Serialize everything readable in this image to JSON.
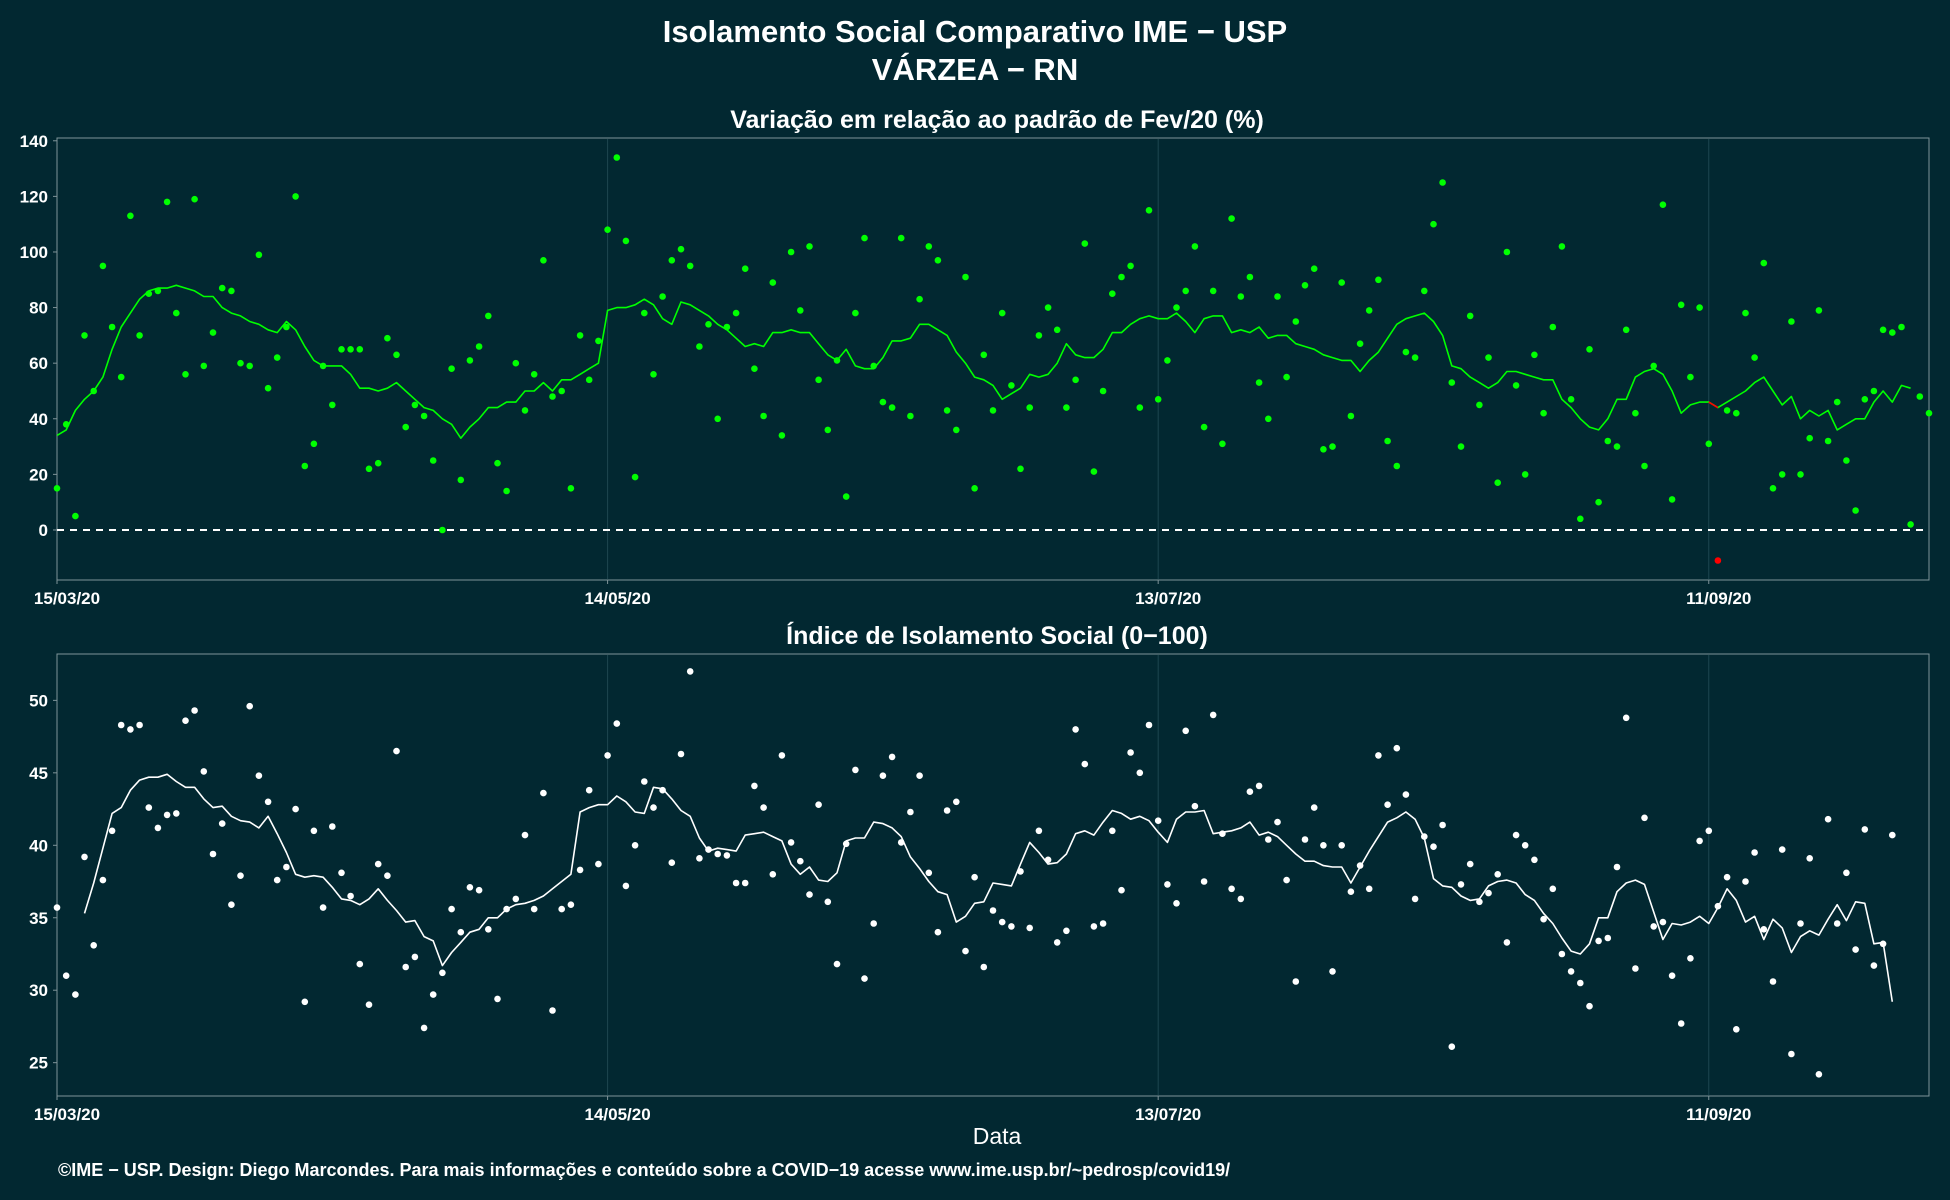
{
  "title_line1": "Isolamento Social Comparativo IME − USP",
  "title_line2": "VÁRZEA − RN",
  "xlabel": "Data",
  "caption": "©IME − USP. Design: Diego Marcondes. Para mais informações e conteúdo sobre a COVID−19 acesse www.ime.usp.br/~pedrosp/covid19/",
  "colors": {
    "background": "#022831",
    "panel_border": "#7f9499",
    "grid": "#1e4650",
    "top_series": "#00ff00",
    "top_highlight": "#ff0000",
    "bottom_series": "#ffffff"
  },
  "chart_data": [
    {
      "type": "scatter",
      "title": "Variação em relação ao padrão de Fev/20 (%)",
      "x_start": "15/03/20",
      "x_tick_labels": [
        "15/03/20",
        "14/05/20",
        "13/07/20",
        "11/09/20"
      ],
      "x_tick_offsets_days": [
        0,
        60,
        120,
        180
      ],
      "x_range_days": [
        0,
        204
      ],
      "ylim": [
        -18,
        141
      ],
      "y_ticks": [
        0,
        20,
        40,
        60,
        80,
        100,
        120,
        140
      ],
      "reference_line_y": 0,
      "series": [
        {
          "role": "points",
          "color": "#00ff00",
          "values": [
            15,
            38,
            5,
            70,
            50,
            95,
            73,
            55,
            113,
            70,
            85,
            86,
            118,
            78,
            56,
            119,
            59,
            71,
            87,
            86,
            60,
            59,
            99,
            51,
            62,
            73,
            120,
            23,
            31,
            59,
            45,
            65,
            65,
            65,
            22,
            24,
            69,
            63,
            37,
            45,
            41,
            25,
            0,
            58,
            18,
            61,
            66,
            77,
            24,
            14,
            60,
            43,
            56,
            97,
            48,
            50,
            15,
            70,
            54,
            68,
            108,
            134,
            104,
            19,
            78,
            56,
            84,
            97,
            101,
            95,
            66,
            74,
            40,
            73,
            78,
            94,
            58,
            41,
            89,
            34,
            100,
            79,
            102,
            54,
            36,
            61,
            12,
            78,
            105,
            59,
            46,
            44,
            105,
            41,
            83,
            102,
            97,
            43,
            36,
            91,
            15,
            63,
            43,
            78,
            52,
            22,
            44,
            70,
            80,
            72,
            44,
            54,
            103,
            21,
            50,
            85,
            91,
            95,
            44,
            115,
            47,
            61,
            80,
            86,
            102,
            37,
            86,
            31,
            112,
            84,
            91,
            53,
            40,
            84,
            55,
            75,
            88,
            94,
            29,
            30,
            89,
            41,
            67,
            79,
            90,
            32,
            23,
            64,
            62,
            86,
            110,
            125,
            53,
            30,
            77,
            45,
            62,
            17,
            100,
            52,
            20,
            63,
            42,
            73,
            102,
            47,
            4,
            65,
            10,
            32,
            30,
            72,
            42,
            23,
            59,
            117,
            11,
            81,
            55,
            80,
            31
          ],
          "highlight_point": {
            "day": 181,
            "value": -11,
            "color": "#ff0000"
          },
          "tail_values": [
            43,
            42,
            78,
            62,
            96,
            15,
            20,
            75,
            20,
            33,
            79,
            32,
            46,
            25,
            7,
            47,
            50,
            72,
            71,
            73,
            2,
            48,
            42
          ]
        },
        {
          "role": "moving_average",
          "color": "#00ff00",
          "values": [
            34,
            36,
            43,
            47,
            50,
            55,
            65,
            73,
            78,
            83,
            86,
            87,
            87,
            88,
            87,
            86,
            84,
            84,
            80,
            78,
            77,
            75,
            74,
            72,
            71,
            75,
            72,
            66,
            61,
            59,
            59,
            59,
            56,
            51,
            51,
            50,
            51,
            53,
            50,
            47,
            44,
            43,
            40,
            38,
            33,
            37,
            40,
            44,
            44,
            46,
            46,
            50,
            50,
            53,
            50,
            54,
            54,
            56,
            58,
            60,
            79,
            80,
            80,
            81,
            83,
            81,
            76,
            74,
            82,
            81,
            79,
            77,
            74,
            72,
            69,
            66,
            67,
            66,
            71,
            71,
            72,
            71,
            71,
            67,
            63,
            61,
            65,
            59,
            58,
            58,
            62,
            68,
            68,
            69,
            74,
            74,
            72,
            70,
            64,
            60,
            55,
            54,
            52,
            47,
            49,
            51,
            56,
            55,
            56,
            60,
            67,
            63,
            62,
            62,
            65,
            71,
            71,
            74,
            76,
            77,
            76,
            76,
            78,
            75,
            71,
            76,
            77,
            77,
            71,
            72,
            71,
            73,
            69,
            70,
            70,
            67,
            66,
            65,
            63,
            62,
            61,
            61,
            57,
            61,
            64,
            69,
            74,
            76,
            77,
            78,
            75,
            70,
            59,
            58,
            55,
            53,
            51,
            53,
            57,
            57,
            56,
            55,
            54,
            54,
            47,
            44,
            40,
            37,
            36,
            40,
            47,
            47,
            55,
            57,
            58,
            56,
            50,
            42,
            45,
            46,
            46,
            44,
            46,
            48,
            50,
            53,
            55,
            50,
            45,
            48,
            40,
            43,
            41,
            43,
            36,
            38,
            40,
            40,
            46,
            50,
            46,
            52,
            51
          ]
        }
      ]
    },
    {
      "type": "scatter",
      "title": "Índice de Isolamento Social (0−100)",
      "x_start": "15/03/20",
      "x_tick_labels": [
        "15/03/20",
        "14/05/20",
        "13/07/20",
        "11/09/20"
      ],
      "x_tick_offsets_days": [
        0,
        60,
        120,
        180
      ],
      "x_range_days": [
        0,
        204
      ],
      "ylim": [
        22.7,
        53.2
      ],
      "y_ticks": [
        25,
        30,
        35,
        40,
        45,
        50
      ],
      "series": [
        {
          "role": "points",
          "color": "#ffffff",
          "values": [
            35.7,
            31.0,
            29.7,
            39.2,
            33.1,
            37.6,
            41.0,
            48.3,
            48.0,
            48.3,
            42.6,
            41.2,
            42.1,
            42.2,
            48.6,
            49.3,
            45.1,
            39.4,
            41.5,
            35.9,
            37.9,
            49.6,
            44.8,
            43.0,
            37.6,
            38.5,
            42.5,
            29.2,
            41.0,
            35.7,
            41.3,
            38.1,
            36.5,
            31.8,
            29.0,
            38.7,
            37.9,
            46.5,
            31.6,
            32.3,
            27.4,
            29.7,
            31.2,
            35.6,
            34.0,
            37.1,
            36.9,
            34.2,
            29.4,
            35.6,
            36.3,
            40.7,
            35.6,
            43.6,
            28.6,
            35.6,
            35.9,
            38.3,
            43.8,
            38.7,
            46.2,
            48.4,
            37.2,
            40.0,
            44.4,
            42.6,
            43.8,
            38.8,
            46.3,
            52.0,
            39.1,
            39.7,
            39.4,
            39.3,
            37.4,
            37.4,
            44.1,
            42.6,
            38.0,
            46.2,
            40.2,
            38.9,
            36.6,
            42.8,
            36.1,
            31.8,
            40.1,
            45.2,
            30.8,
            34.6,
            44.8,
            46.1,
            40.2,
            42.3,
            44.8,
            38.1,
            34.0,
            42.4,
            43.0,
            32.7,
            37.8,
            31.6,
            35.5,
            34.7,
            34.4,
            38.2,
            34.3,
            41.0,
            39.0,
            33.3,
            34.1,
            48.0,
            45.6,
            34.4,
            34.6,
            41.0,
            36.9,
            46.4,
            45.0,
            48.3,
            41.7,
            37.3,
            36.0,
            47.9,
            42.7,
            37.5,
            49.0,
            40.8,
            37.0,
            36.3,
            43.7,
            44.1,
            40.4,
            41.6,
            37.6,
            30.6,
            40.4,
            42.6,
            40.0,
            31.3,
            40.0,
            36.8,
            38.6,
            37.0,
            46.2,
            42.8,
            46.7,
            43.5,
            36.3,
            40.6,
            39.9,
            41.4,
            26.1,
            37.3,
            38.7,
            36.1,
            36.7,
            38.0,
            33.3,
            40.7,
            40.0,
            39.0,
            34.9,
            37.0,
            32.5,
            31.3,
            30.5,
            28.9,
            33.4,
            33.6,
            38.5,
            48.8,
            31.5,
            41.9,
            34.4,
            34.7,
            31.0,
            27.7,
            32.2,
            40.3,
            41.0,
            35.8,
            37.8,
            27.3,
            37.5,
            39.5,
            34.2,
            30.6,
            39.7,
            25.6,
            34.6,
            39.1,
            24.2,
            41.8,
            34.6,
            38.1,
            32.8,
            41.1,
            31.7,
            33.2,
            40.7
          ]
        },
        {
          "role": "moving_average",
          "color": "#ffffff",
          "values": [
            35.3,
            37.4,
            39.8,
            42.2,
            42.6,
            43.8,
            44.5,
            44.7,
            44.7,
            44.9,
            44.4,
            44.0,
            44.0,
            43.2,
            42.6,
            42.7,
            42.0,
            41.7,
            41.6,
            41.2,
            42.0,
            40.8,
            39.5,
            38.0,
            37.8,
            37.9,
            37.8,
            37.1,
            36.3,
            36.2,
            35.9,
            36.3,
            37.0,
            36.2,
            35.5,
            34.7,
            34.8,
            33.7,
            33.4,
            31.7,
            32.6,
            33.3,
            34.0,
            34.2,
            35.0,
            35.0,
            35.6,
            35.9,
            36.0,
            36.2,
            36.5,
            37.0,
            37.5,
            38.0,
            42.3,
            42.6,
            42.8,
            42.8,
            43.4,
            43.0,
            42.3,
            42.2,
            44.0,
            43.9,
            43.2,
            42.4,
            42.0,
            40.5,
            39.6,
            39.8,
            39.7,
            39.6,
            40.7,
            40.8,
            40.9,
            40.6,
            40.3,
            38.7,
            38.0,
            38.5,
            37.6,
            37.5,
            38.1,
            40.3,
            40.5,
            40.5,
            41.6,
            41.5,
            41.2,
            40.6,
            39.2,
            38.4,
            37.5,
            36.8,
            36.6,
            34.7,
            35.1,
            36.0,
            36.1,
            37.4,
            37.3,
            37.2,
            38.7,
            40.2,
            39.5,
            38.7,
            38.8,
            39.4,
            40.8,
            41.0,
            40.7,
            41.6,
            42.4,
            42.2,
            41.8,
            42.0,
            41.7,
            40.9,
            40.2,
            41.8,
            42.3,
            42.3,
            42.4,
            40.8,
            40.9,
            41.0,
            41.2,
            41.6,
            40.7,
            40.9,
            40.6,
            40.0,
            39.4,
            38.9,
            38.9,
            38.6,
            38.5,
            38.5,
            37.4,
            38.5,
            39.6,
            40.6,
            41.6,
            41.9,
            42.3,
            41.8,
            40.5,
            37.7,
            37.2,
            37.1,
            36.5,
            36.2,
            36.3,
            37.2,
            37.5,
            37.6,
            37.4,
            36.6,
            36.2,
            35.3,
            34.6,
            33.6,
            32.7,
            32.5,
            33.2,
            35.0,
            35.0,
            36.8,
            37.4,
            37.6,
            37.3,
            35.4,
            33.5,
            34.6,
            34.5,
            34.7,
            35.1,
            34.6,
            35.7,
            37.0,
            36.2,
            34.7,
            35.1,
            33.5,
            34.9,
            34.3,
            32.6,
            33.7,
            34.1,
            33.8,
            34.9,
            35.9,
            34.8,
            36.1,
            36.0,
            33.2,
            33.3,
            29.2
          ]
        }
      ]
    }
  ]
}
